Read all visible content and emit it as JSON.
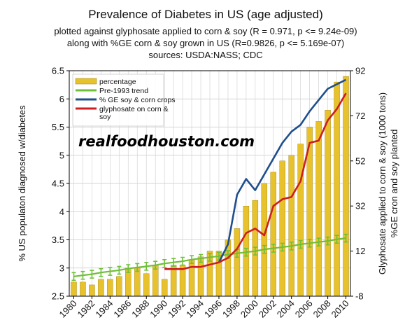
{
  "chart_data": {
    "type": "bar",
    "title": "Prevalence of Diabetes in US (age adjusted)",
    "subtitle_lines": [
      "plotted against glyphosate applied to corn & soy (R = 0.971, p <= 9.24e-09)",
      "along with %GE corn & soy grown in US (R=0.9826, p <= 5.169e-07)",
      "sources: USDA:NASS; CDC"
    ],
    "ylabel_left": "% US populaton diagnosed w/diabetes",
    "ylabel_right": [
      "Glyphosate applied to corn & soy (1000 tons)",
      "%GE cron and soy planted"
    ],
    "watermark": "realfoodhouston.com",
    "x": [
      1980,
      1981,
      1982,
      1983,
      1984,
      1985,
      1986,
      1987,
      1988,
      1989,
      1990,
      1991,
      1992,
      1993,
      1994,
      1995,
      1996,
      1997,
      1998,
      1999,
      2000,
      2001,
      2002,
      2003,
      2004,
      2005,
      2006,
      2007,
      2008,
      2009,
      2010
    ],
    "x_tick_labels": [
      "1980",
      "1982",
      "1984",
      "1986",
      "1988",
      "1990",
      "1992",
      "1994",
      "1996",
      "1998",
      "2000",
      "2002",
      "2004",
      "2006",
      "2008",
      "2010"
    ],
    "ylim_left": [
      2.5,
      6.5
    ],
    "yticks_left": [
      "2.5",
      "3",
      "3.5",
      "4",
      "4.5",
      "5",
      "5.5",
      "6",
      "6.5"
    ],
    "ylim_right": [
      -8,
      92
    ],
    "yticks_right": [
      "-8",
      "12",
      "32",
      "52",
      "72",
      "92"
    ],
    "grid": true,
    "legend_position": "top-left",
    "series": [
      {
        "name": "percentage",
        "kind": "bar",
        "axis": "left",
        "color": "#e8c22c",
        "values": [
          2.75,
          2.75,
          2.7,
          2.8,
          2.8,
          2.85,
          3.0,
          3.0,
          2.9,
          3.05,
          2.8,
          3.05,
          3.05,
          3.15,
          3.2,
          3.3,
          3.3,
          3.5,
          3.7,
          4.1,
          4.2,
          4.5,
          4.7,
          4.9,
          5.0,
          5.2,
          5.5,
          5.6,
          5.8,
          6.3,
          6.4
        ]
      },
      {
        "name": "Pre-1993 trend",
        "kind": "line",
        "axis": "left",
        "color": "#6fbf3a",
        "values": [
          2.85,
          2.87,
          2.89,
          2.92,
          2.94,
          2.96,
          2.99,
          3.01,
          3.03,
          3.05,
          3.08,
          3.1,
          3.12,
          3.15,
          3.17,
          3.19,
          3.21,
          3.24,
          3.26,
          3.28,
          3.3,
          3.33,
          3.35,
          3.37,
          3.39,
          3.42,
          3.44,
          3.46,
          3.48,
          3.51,
          3.53
        ]
      },
      {
        "name": "% GE soy & corn crops",
        "kind": "line",
        "axis": "right",
        "color": "#1f4e8c",
        "x": [
          1996,
          1997,
          1998,
          1999,
          2000,
          2001,
          2002,
          2003,
          2004,
          2005,
          2006,
          2007,
          2008,
          2009,
          2010
        ],
        "values": [
          7,
          15,
          37,
          44,
          39,
          46,
          53,
          60,
          65,
          68,
          74,
          79,
          84,
          86,
          88
        ]
      },
      {
        "name": "glyphosate on corn & soy",
        "kind": "line",
        "axis": "right",
        "color": "#cc1f1f",
        "x": [
          1990,
          1991,
          1992,
          1993,
          1994,
          1995,
          1996,
          1997,
          1998,
          1999,
          2000,
          2001,
          2002,
          2003,
          2004,
          2005,
          2006,
          2007,
          2008,
          2009,
          2010
        ],
        "values": [
          4,
          4,
          4,
          5,
          5,
          6,
          7,
          9,
          13,
          20,
          22,
          19,
          32,
          35,
          36,
          43,
          60,
          61,
          70,
          75,
          82
        ]
      }
    ]
  }
}
